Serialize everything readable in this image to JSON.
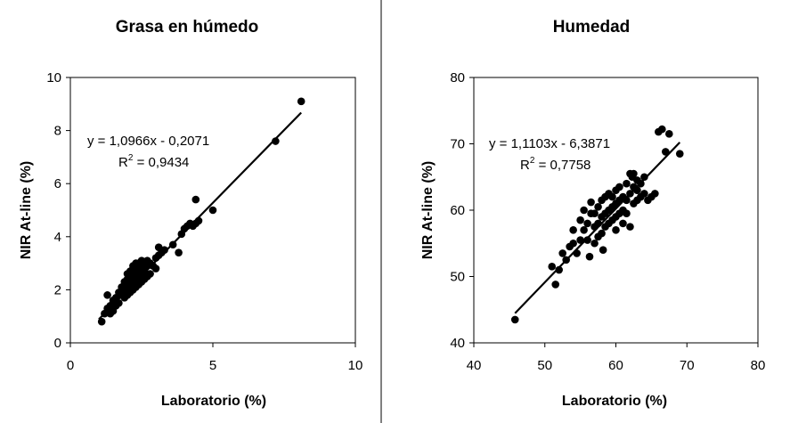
{
  "chart_data": [
    {
      "type": "scatter",
      "title": "Grasa en húmedo",
      "xlabel": "Laboratorio (%)",
      "ylabel": "NIR At-line (%)",
      "xlim": [
        0,
        10
      ],
      "ylim": [
        0,
        10
      ],
      "xticks": [
        "0",
        "5",
        "10"
      ],
      "yticks": [
        "0",
        "2",
        "4",
        "6",
        "8",
        "10"
      ],
      "grid": false,
      "trendline": {
        "slope": 1.0966,
        "intercept": -0.2071,
        "x_range": [
          1.0,
          8.1
        ]
      },
      "equation": "y = 1,0966x - 0,2071",
      "r2_prefix": "R",
      "r2_sup": "2",
      "r2_value": " = 0,9434",
      "series": [
        {
          "x": [
            1.1,
            1.2,
            1.3,
            1.3,
            1.4,
            1.4,
            1.5,
            1.5,
            1.6,
            1.6,
            1.7,
            1.7,
            1.8,
            1.8,
            1.9,
            1.9,
            1.9,
            2.0,
            2.0,
            2.0,
            2.0,
            2.1,
            2.1,
            2.1,
            2.1,
            2.1,
            2.2,
            2.2,
            2.2,
            2.2,
            2.2,
            2.2,
            2.3,
            2.3,
            2.3,
            2.3,
            2.3,
            2.3,
            2.4,
            2.4,
            2.4,
            2.4,
            2.4,
            2.5,
            2.5,
            2.5,
            2.5,
            2.5,
            2.6,
            2.6,
            2.6,
            2.6,
            2.7,
            2.7,
            2.7,
            2.8,
            2.8,
            2.9,
            3.0,
            3.0,
            3.1,
            3.1,
            3.2,
            3.3,
            3.6,
            3.8,
            3.9,
            4.0,
            4.1,
            4.2,
            4.3,
            4.4,
            4.5,
            4.4,
            5.0,
            7.2,
            8.1
          ],
          "y": [
            0.8,
            1.1,
            1.3,
            1.8,
            1.4,
            1.1,
            1.6,
            1.2,
            1.4,
            1.7,
            1.5,
            1.9,
            1.8,
            2.1,
            1.7,
            2.0,
            2.3,
            1.8,
            2.1,
            2.4,
            2.6,
            1.9,
            2.2,
            2.5,
            2.7,
            2.3,
            2.0,
            2.3,
            2.6,
            2.8,
            2.4,
            2.9,
            2.1,
            2.4,
            2.7,
            2.5,
            2.9,
            3.0,
            2.2,
            2.5,
            2.8,
            2.6,
            3.0,
            2.3,
            2.6,
            2.9,
            2.7,
            3.1,
            2.4,
            2.7,
            3.0,
            2.8,
            2.5,
            2.9,
            3.1,
            2.6,
            3.0,
            2.9,
            3.2,
            2.8,
            3.6,
            3.3,
            3.4,
            3.5,
            3.7,
            3.4,
            4.1,
            4.3,
            4.4,
            4.5,
            4.4,
            4.5,
            4.6,
            5.4,
            5.0,
            7.6,
            9.1
          ]
        }
      ]
    },
    {
      "type": "scatter",
      "title": "Humedad",
      "xlabel": "Laboratorio (%)",
      "ylabel": "NIR At-line (%)",
      "xlim": [
        40,
        80
      ],
      "ylim": [
        40,
        80
      ],
      "xticks": [
        "40",
        "50",
        "60",
        "70",
        "80"
      ],
      "yticks": [
        "40",
        "50",
        "60",
        "70",
        "80"
      ],
      "grid": false,
      "trendline": {
        "slope": 1.1103,
        "intercept": -6.3871,
        "x_range": [
          45.8,
          69.0
        ]
      },
      "equation": "y = 1,1103x - 6,3871",
      "r2_prefix": "R",
      "r2_sup": "2",
      "r2_value": " = 0,7758",
      "series": [
        {
          "x": [
            45.8,
            51.0,
            51.5,
            52.0,
            52.5,
            53.0,
            53.5,
            54.0,
            54.0,
            54.5,
            55.0,
            55.0,
            55.5,
            55.5,
            56.0,
            56.0,
            56.5,
            56.5,
            57.0,
            57.0,
            57.0,
            57.5,
            57.5,
            57.5,
            58.0,
            58.0,
            58.0,
            58.5,
            58.5,
            58.5,
            59.0,
            59.0,
            59.0,
            59.5,
            59.5,
            59.5,
            60.0,
            60.0,
            60.0,
            60.0,
            60.5,
            60.5,
            60.5,
            61.0,
            61.0,
            61.0,
            61.5,
            61.5,
            61.5,
            62.0,
            62.0,
            62.0,
            62.5,
            62.5,
            62.5,
            63.0,
            63.0,
            63.0,
            63.5,
            63.5,
            64.0,
            64.0,
            64.5,
            65.0,
            65.5,
            66.0,
            66.5,
            67.0,
            67.5,
            69.0,
            56.3,
            58.2,
            62.3
          ],
          "y": [
            43.5,
            51.5,
            48.8,
            51.0,
            53.5,
            52.5,
            54.5,
            55.0,
            57.0,
            53.5,
            55.5,
            58.5,
            57.0,
            60.0,
            55.5,
            58.0,
            59.5,
            61.2,
            55.0,
            57.5,
            59.5,
            56.0,
            58.0,
            60.5,
            56.5,
            59.0,
            61.5,
            57.5,
            59.5,
            62.0,
            58.0,
            60.0,
            62.5,
            58.5,
            60.5,
            62.0,
            57.0,
            59.0,
            61.0,
            63.0,
            59.5,
            61.5,
            63.5,
            58.0,
            60.0,
            62.0,
            59.5,
            61.5,
            64.0,
            57.5,
            62.5,
            65.5,
            61.0,
            63.5,
            65.5,
            61.5,
            63.0,
            64.5,
            62.0,
            64.0,
            62.5,
            65.0,
            61.5,
            62.0,
            62.5,
            71.8,
            72.2,
            68.8,
            71.5,
            68.5,
            53.0,
            54.0,
            65.0
          ]
        }
      ]
    }
  ]
}
